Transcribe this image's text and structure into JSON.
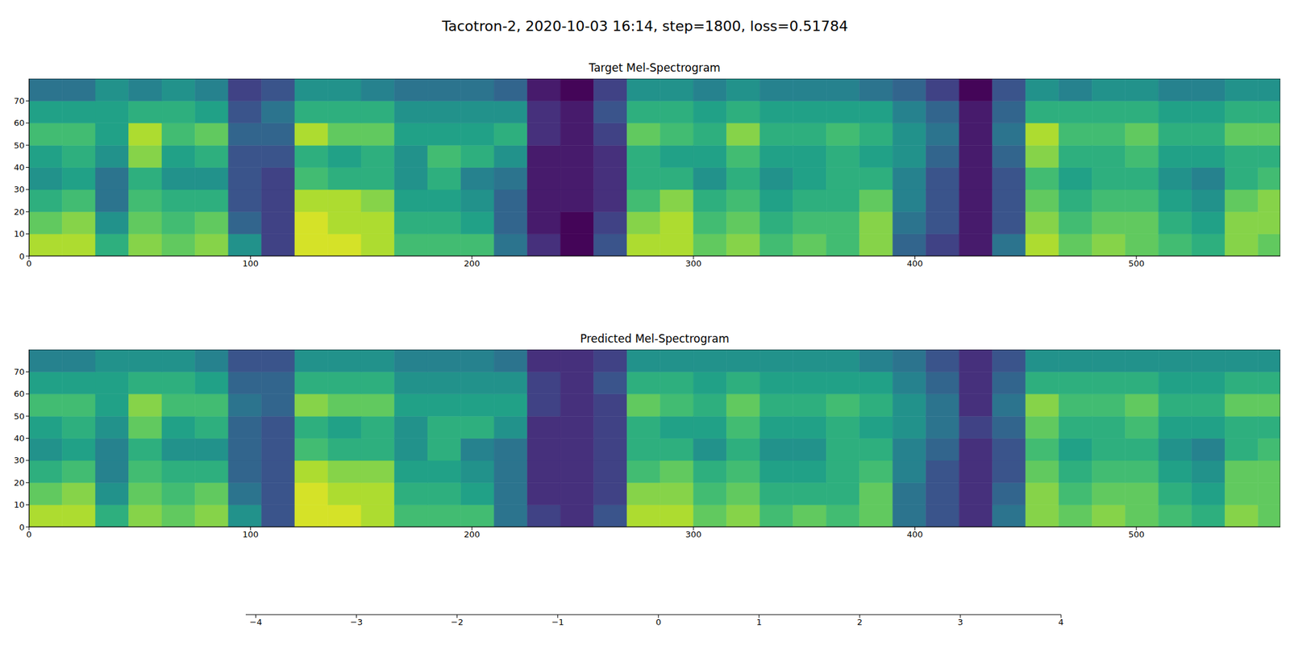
{
  "chart_data": {
    "type": "heatmap",
    "title": "Tacotron-2, 2020-10-03 16:14, step=1800, loss=0.51784",
    "xlim": [
      0,
      565
    ],
    "xticks": [
      0,
      100,
      200,
      300,
      400,
      500
    ],
    "ylim": [
      0,
      80
    ],
    "yticks": [
      0,
      10,
      20,
      30,
      40,
      50,
      60,
      70
    ],
    "x_edges": [
      0,
      15,
      30,
      45,
      60,
      75,
      90,
      105,
      120,
      135,
      150,
      165,
      180,
      195,
      210,
      225,
      240,
      255,
      270,
      285,
      300,
      315,
      330,
      345,
      360,
      375,
      390,
      405,
      420,
      435,
      450,
      465,
      480,
      495,
      510,
      525,
      540,
      555,
      570
    ],
    "y_edges": [
      0,
      10,
      20,
      30,
      40,
      50,
      60,
      70,
      80
    ],
    "colorbar": {
      "range": [
        -4.1,
        4
      ],
      "ticks": [
        {
          "value": -4,
          "label": "−4"
        },
        {
          "value": -3,
          "label": "−3"
        },
        {
          "value": -2,
          "label": "−2"
        },
        {
          "value": -1,
          "label": "−1"
        },
        0,
        1,
        2,
        3,
        4
      ]
    },
    "panels": [
      {
        "title": "Target Mel-Spectrogram",
        "cells": [
          [
            3,
            2,
            1,
            0,
            0.5,
            1.5,
            0.5,
            -1
          ],
          [
            3,
            2.5,
            1.5,
            0.5,
            1,
            1.5,
            0.5,
            -1
          ],
          [
            1,
            0,
            -1,
            -1,
            0,
            0.5,
            0.5,
            0
          ],
          [
            2.5,
            2,
            1.5,
            1,
            2.5,
            3,
            1,
            -0.5
          ],
          [
            2,
            1.5,
            1,
            0,
            0.5,
            1.5,
            1,
            0
          ],
          [
            2.5,
            2,
            1,
            0,
            1,
            2,
            0.5,
            -0.5
          ],
          [
            0,
            -1.5,
            -2,
            -2,
            -2,
            -1.5,
            -2,
            -2.5
          ],
          [
            -2.5,
            -2.5,
            -2.5,
            -2.5,
            -2,
            -1.5,
            -1,
            -2
          ],
          [
            3.5,
            3.5,
            3,
            1.5,
            1,
            3,
            1,
            0
          ],
          [
            3.5,
            3,
            3,
            1,
            0.5,
            2,
            1,
            0
          ],
          [
            3,
            3,
            2.5,
            1,
            1,
            2,
            1,
            -0.5
          ],
          [
            1.5,
            1,
            0.5,
            0,
            0,
            0.5,
            0,
            -1
          ],
          [
            1.5,
            1,
            0.5,
            1,
            1.5,
            0.5,
            0,
            -1
          ],
          [
            1.5,
            0.5,
            0,
            -0.5,
            1,
            0.5,
            0,
            -1
          ],
          [
            -1,
            -1.5,
            -1.5,
            -1,
            0,
            1,
            0,
            -1.5
          ],
          [
            -3,
            -3.5,
            -3.5,
            -3.5,
            -3.5,
            -3,
            -3,
            -3.5
          ],
          [
            -4,
            -4,
            -3.5,
            -3.5,
            -3.5,
            -3.5,
            -3.5,
            -4
          ],
          [
            -2,
            -2.5,
            -3,
            -3,
            -3,
            -2.5,
            -2,
            -2.5
          ],
          [
            3,
            2.5,
            1.5,
            1,
            1,
            2,
            1,
            0
          ],
          [
            3,
            3,
            2.5,
            1,
            0.5,
            1.5,
            1,
            0
          ],
          [
            2,
            1.5,
            1,
            0,
            0.5,
            1,
            0.5,
            -0.5
          ],
          [
            2.5,
            2,
            1.5,
            1,
            1.5,
            2.5,
            1,
            0
          ],
          [
            1.5,
            1,
            0.5,
            0,
            0.5,
            1,
            0.5,
            -0.5
          ],
          [
            2,
            1.5,
            1,
            0.5,
            0.5,
            1,
            0.5,
            -0.5
          ],
          [
            1.5,
            1.5,
            1,
            1,
            1,
            1.5,
            0.5,
            -0.5
          ],
          [
            2.5,
            2.5,
            2,
            1,
            0.5,
            1,
            0.5,
            -1
          ],
          [
            -1.5,
            -1,
            -0.5,
            -0.5,
            0,
            0,
            -0.5,
            -1.5
          ],
          [
            -2.5,
            -2,
            -2,
            -2,
            -1.5,
            -1,
            -1.5,
            -2.5
          ],
          [
            -3.5,
            -3.5,
            -3.5,
            -3.5,
            -3.5,
            -3.5,
            -3.5,
            -4
          ],
          [
            -1,
            -2,
            -2,
            -2,
            -1.5,
            -1,
            -1.5,
            -2
          ],
          [
            3,
            2.5,
            2,
            1.5,
            2.5,
            3,
            1,
            0
          ],
          [
            2,
            1.5,
            1,
            0.5,
            1,
            1.5,
            1,
            -0.5
          ],
          [
            2.5,
            2,
            1.5,
            1,
            1,
            1.5,
            1,
            0
          ],
          [
            2,
            2,
            1.5,
            1,
            1.5,
            2,
            1,
            0
          ],
          [
            1.5,
            1,
            0.5,
            0,
            0.5,
            1,
            0.5,
            -0.5
          ],
          [
            1,
            0.5,
            0,
            -0.5,
            0.5,
            1,
            0.5,
            -0.5
          ],
          [
            2.5,
            2.5,
            2,
            1,
            1,
            2,
            1,
            0
          ],
          [
            2,
            2.5,
            2.5,
            1.5,
            1,
            2,
            1,
            0
          ]
        ]
      },
      {
        "title": "Predicted Mel-Spectrogram",
        "cells": [
          [
            3,
            2,
            1,
            0,
            0.5,
            1.5,
            0.5,
            -0.5
          ],
          [
            3,
            2.5,
            1.5,
            0.5,
            1,
            1.5,
            0.5,
            -0.5
          ],
          [
            1,
            0,
            -0.5,
            -0.5,
            0,
            0.5,
            0.5,
            0
          ],
          [
            2.5,
            2,
            1.5,
            1,
            2,
            2.5,
            1,
            0
          ],
          [
            2,
            1.5,
            1,
            0,
            0.5,
            1.5,
            1,
            0
          ],
          [
            2.5,
            2,
            1,
            0,
            1,
            1.5,
            0.5,
            -0.5
          ],
          [
            0,
            -1,
            -1.5,
            -1.5,
            -1.5,
            -1,
            -1.5,
            -2
          ],
          [
            -2,
            -2,
            -2,
            -2,
            -2,
            -1.5,
            -1.5,
            -2
          ],
          [
            3.5,
            3.5,
            3,
            1.5,
            1,
            2.5,
            1,
            0
          ],
          [
            3.5,
            3,
            2.5,
            1,
            0.5,
            2,
            1,
            0
          ],
          [
            3,
            3,
            2.5,
            1,
            1,
            2,
            1,
            0
          ],
          [
            1.5,
            1,
            0.5,
            0,
            0,
            0.5,
            0,
            -0.5
          ],
          [
            1.5,
            1,
            0.5,
            1,
            1,
            0.5,
            0,
            -0.5
          ],
          [
            1.5,
            0.5,
            0,
            -0.5,
            1,
            0.5,
            0,
            -0.5
          ],
          [
            -1,
            -1,
            -1,
            -1,
            0,
            0.5,
            0,
            -1
          ],
          [
            -2.5,
            -3,
            -3,
            -3,
            -3,
            -2.5,
            -2.5,
            -3
          ],
          [
            -3,
            -3,
            -3,
            -3,
            -3,
            -3,
            -3,
            -3
          ],
          [
            -2,
            -2.5,
            -2.5,
            -2.5,
            -2.5,
            -2.5,
            -2,
            -2.5
          ],
          [
            3,
            2.5,
            1.5,
            1,
            1,
            2,
            1,
            0
          ],
          [
            3,
            2.5,
            2,
            1,
            0.5,
            1.5,
            1,
            0
          ],
          [
            2,
            1.5,
            1,
            0,
            0.5,
            1,
            0.5,
            0
          ],
          [
            2.5,
            2,
            1.5,
            1,
            1.5,
            2,
            1,
            0
          ],
          [
            1.5,
            1,
            0.5,
            0,
            0.5,
            1,
            0.5,
            0
          ],
          [
            2,
            1,
            0.5,
            0,
            0.5,
            1,
            0.5,
            0
          ],
          [
            1.5,
            1,
            1,
            1,
            1,
            1.5,
            0.5,
            0
          ],
          [
            2,
            2,
            1.5,
            1,
            0.5,
            1,
            0.5,
            -0.5
          ],
          [
            -1,
            -1,
            -0.5,
            -0.5,
            0,
            0,
            -0.5,
            -1
          ],
          [
            -2,
            -2,
            -2,
            -1.5,
            -1,
            -1,
            -1.5,
            -2
          ],
          [
            -3,
            -3,
            -3,
            -3,
            -2.5,
            -3,
            -3,
            -3
          ],
          [
            -1,
            -1.5,
            -2,
            -2,
            -1.5,
            -1,
            -1.5,
            -2
          ],
          [
            2.5,
            2.5,
            2,
            1.5,
            2,
            2.5,
            1,
            0
          ],
          [
            2,
            1.5,
            1,
            0.5,
            1,
            1.5,
            1,
            0
          ],
          [
            2.5,
            2,
            1.5,
            1,
            1,
            1.5,
            1,
            0
          ],
          [
            2,
            2,
            1.5,
            1,
            1.5,
            2,
            1,
            0
          ],
          [
            1.5,
            1,
            0.5,
            0,
            0.5,
            1,
            0.5,
            0
          ],
          [
            1,
            0.5,
            0,
            -0.5,
            0.5,
            1,
            0.5,
            0
          ],
          [
            2.5,
            2,
            2,
            1,
            1,
            2,
            1,
            0
          ],
          [
            2,
            2,
            2,
            1.5,
            1,
            2,
            1,
            0
          ]
        ]
      }
    ]
  }
}
